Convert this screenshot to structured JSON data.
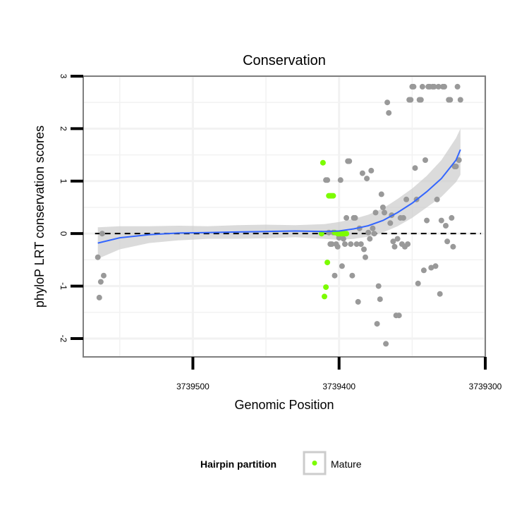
{
  "chart_data": {
    "type": "scatter",
    "title": "Conservation",
    "xlabel": "Genomic Position",
    "ylabel": "phyloP LRT conservation scores",
    "x_reversed": true,
    "xlim": [
      3739575,
      3739300
    ],
    "ylim": [
      -2.35,
      3.0
    ],
    "x_ticks": [
      3739500,
      3739400,
      3739300
    ],
    "x_tick_labels": [
      "3739500",
      "3739400",
      "3739300"
    ],
    "y_ticks": [
      -2,
      -1,
      0,
      1,
      2,
      3
    ],
    "y_tick_labels": [
      "-2",
      "-1",
      "0",
      "1",
      "2",
      "3"
    ],
    "reference_line": {
      "y": 0,
      "style": "dashed",
      "color": "#000000"
    },
    "colors": {
      "other": "#999999",
      "mature": "#7cfc00",
      "smooth": "#3366ff",
      "ribbon": "#cccccc",
      "frame": "#7f7f7f",
      "grid": "#f2f2f2"
    },
    "legend": {
      "title": "Hairpin partition",
      "position": "bottom",
      "entries": [
        {
          "label": "Mature",
          "color": "#7cfc00"
        }
      ]
    },
    "series": [
      {
        "name": "Other",
        "color": "#999999",
        "points": [
          [
            3739565,
            -0.45
          ],
          [
            3739564,
            -1.22
          ],
          [
            3739563,
            -0.92
          ],
          [
            3739562,
            0.0
          ],
          [
            3739561,
            -0.8
          ],
          [
            3739409,
            1.02
          ],
          [
            3739408,
            1.02
          ],
          [
            3739407,
            0.02
          ],
          [
            3739406,
            -0.2
          ],
          [
            3739405,
            -0.2
          ],
          [
            3739404,
            0.02
          ],
          [
            3739403,
            -0.8
          ],
          [
            3739402,
            -0.2
          ],
          [
            3739401,
            -0.25
          ],
          [
            3739400,
            -0.08
          ],
          [
            3739399,
            1.02
          ],
          [
            3739398,
            -0.62
          ],
          [
            3739397,
            -0.1
          ],
          [
            3739396,
            -0.2
          ],
          [
            3739395,
            0.3
          ],
          [
            3739394,
            1.38
          ],
          [
            3739393,
            1.38
          ],
          [
            3739392,
            -0.2
          ],
          [
            3739391,
            -0.8
          ],
          [
            3739390,
            0.3
          ],
          [
            3739389,
            0.3
          ],
          [
            3739388,
            -0.2
          ],
          [
            3739387,
            -1.3
          ],
          [
            3739386,
            0.1
          ],
          [
            3739385,
            -0.2
          ],
          [
            3739384,
            1.15
          ],
          [
            3739383,
            -0.3
          ],
          [
            3739382,
            -0.45
          ],
          [
            3739381,
            1.05
          ],
          [
            3739380,
            0.02
          ],
          [
            3739379,
            -0.1
          ],
          [
            3739378,
            1.2
          ],
          [
            3739377,
            0.1
          ],
          [
            3739376,
            0.0
          ],
          [
            3739375,
            0.4
          ],
          [
            3739374,
            -1.72
          ],
          [
            3739373,
            -1.0
          ],
          [
            3739372,
            -1.25
          ],
          [
            3739371,
            0.75
          ],
          [
            3739370,
            0.5
          ],
          [
            3739369,
            0.4
          ],
          [
            3739368,
            -2.1
          ],
          [
            3739367,
            2.5
          ],
          [
            3739366,
            2.3
          ],
          [
            3739365,
            0.2
          ],
          [
            3739364,
            0.35
          ],
          [
            3739363,
            -0.15
          ],
          [
            3739362,
            -0.25
          ],
          [
            3739361,
            -1.56
          ],
          [
            3739360,
            -0.1
          ],
          [
            3739359,
            -1.56
          ],
          [
            3739358,
            0.3
          ],
          [
            3739357,
            -0.2
          ],
          [
            3739356,
            0.3
          ],
          [
            3739355,
            -0.25
          ],
          [
            3739354,
            0.65
          ],
          [
            3739353,
            -0.2
          ],
          [
            3739352,
            2.55
          ],
          [
            3739351,
            2.55
          ],
          [
            3739350,
            2.8
          ],
          [
            3739349,
            2.8
          ],
          [
            3739348,
            1.25
          ],
          [
            3739347,
            0.65
          ],
          [
            3739346,
            -0.95
          ],
          [
            3739345,
            2.55
          ],
          [
            3739344,
            2.55
          ],
          [
            3739343,
            2.8
          ],
          [
            3739342,
            -0.7
          ],
          [
            3739341,
            1.4
          ],
          [
            3739340,
            0.25
          ],
          [
            3739339,
            2.8
          ],
          [
            3739338,
            2.8
          ],
          [
            3739337,
            -0.65
          ],
          [
            3739336,
            2.8
          ],
          [
            3739335,
            2.8
          ],
          [
            3739334,
            -0.62
          ],
          [
            3739333,
            0.65
          ],
          [
            3739332,
            2.8
          ],
          [
            3739331,
            -1.15
          ],
          [
            3739330,
            0.25
          ],
          [
            3739329,
            2.8
          ],
          [
            3739328,
            2.8
          ],
          [
            3739327,
            0.15
          ],
          [
            3739326,
            -0.15
          ],
          [
            3739325,
            2.55
          ],
          [
            3739324,
            2.55
          ],
          [
            3739323,
            0.3
          ],
          [
            3739322,
            -0.25
          ],
          [
            3739321,
            1.28
          ],
          [
            3739320,
            1.28
          ],
          [
            3739319,
            2.8
          ],
          [
            3739318,
            1.4
          ],
          [
            3739317,
            2.55
          ]
        ]
      },
      {
        "name": "Mature",
        "color": "#7cfc00",
        "points": [
          [
            3739412,
            0.0
          ],
          [
            3739411,
            1.35
          ],
          [
            3739410,
            -1.2
          ],
          [
            3739409,
            -1.02
          ],
          [
            3739408,
            -0.55
          ],
          [
            3739407,
            0.72
          ],
          [
            3739406,
            0.72
          ],
          [
            3739405,
            0.72
          ],
          [
            3739404,
            0.72
          ],
          [
            3739403,
            0.02
          ],
          [
            3739401,
            0.0
          ],
          [
            3739400,
            0.0
          ],
          [
            3739399,
            0.0
          ],
          [
            3739398,
            0.0
          ],
          [
            3739397,
            0.0
          ],
          [
            3739396,
            0.0
          ],
          [
            3739395,
            0.0
          ]
        ]
      }
    ],
    "smooth": {
      "x": [
        3739565,
        3739550,
        3739530,
        3739510,
        3739490,
        3739470,
        3739450,
        3739430,
        3739410,
        3739400,
        3739390,
        3739380,
        3739370,
        3739360,
        3739350,
        3739340,
        3739330,
        3739320,
        3739317
      ],
      "y": [
        -0.18,
        -0.08,
        -0.02,
        0.01,
        0.02,
        0.03,
        0.04,
        0.05,
        0.04,
        0.05,
        0.09,
        0.15,
        0.25,
        0.4,
        0.58,
        0.8,
        1.05,
        1.4,
        1.6
      ],
      "ymin": [
        -0.48,
        -0.3,
        -0.18,
        -0.13,
        -0.1,
        -0.1,
        -0.09,
        -0.07,
        -0.1,
        -0.12,
        -0.1,
        -0.06,
        0.02,
        0.14,
        0.3,
        0.5,
        0.7,
        0.98,
        1.12
      ],
      "ymax": [
        0.12,
        0.14,
        0.14,
        0.15,
        0.14,
        0.16,
        0.17,
        0.16,
        0.18,
        0.22,
        0.28,
        0.36,
        0.48,
        0.66,
        0.86,
        1.1,
        1.4,
        1.82,
        2.0
      ]
    }
  }
}
